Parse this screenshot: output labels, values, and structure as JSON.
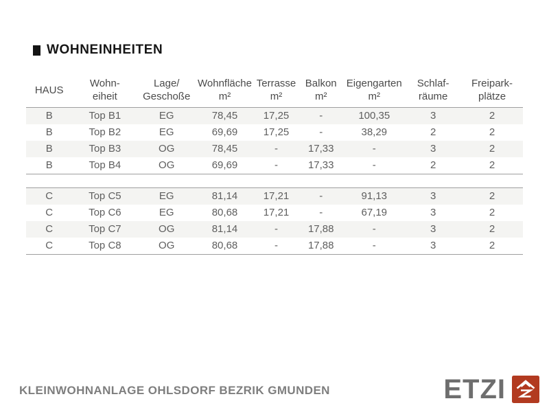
{
  "title": {
    "text": "WOHNEINHEITEN"
  },
  "table": {
    "columns": [
      {
        "id": "haus",
        "label": "HAUS"
      },
      {
        "id": "wohneinheit",
        "label": "Wohn-\neiheit"
      },
      {
        "id": "lage-geschosse",
        "label": "Lage/\nGeschoße"
      },
      {
        "id": "wohnflaeche",
        "label": "Wohnfläche\nm²"
      },
      {
        "id": "terrasse",
        "label": "Terrasse\nm²"
      },
      {
        "id": "balkon",
        "label": "Balkon\nm²"
      },
      {
        "id": "eigengarten",
        "label": "Eigengarten\nm²"
      },
      {
        "id": "schlafraeume",
        "label": "Schlaf-\nräume"
      },
      {
        "id": "freiparkplaetze",
        "label": "Freipark-\nplätze"
      }
    ],
    "sections": [
      {
        "id": "haus-b",
        "rows": [
          [
            "B",
            "Top B1",
            "EG",
            "78,45",
            "17,25",
            "-",
            "100,35",
            "3",
            "2"
          ],
          [
            "B",
            "Top B2",
            "EG",
            "69,69",
            "17,25",
            "-",
            "38,29",
            "2",
            "2"
          ],
          [
            "B",
            "Top B3",
            "OG",
            "78,45",
            "-",
            "17,33",
            "-",
            "3",
            "2"
          ],
          [
            "B",
            "Top B4",
            "OG",
            "69,69",
            "-",
            "17,33",
            "-",
            "2",
            "2"
          ]
        ]
      },
      {
        "id": "haus-c",
        "rows": [
          [
            "C",
            "Top C5",
            "EG",
            "81,14",
            "17,21",
            "-",
            "91,13",
            "3",
            "2"
          ],
          [
            "C",
            "Top C6",
            "EG",
            "80,68",
            "17,21",
            "-",
            "67,19",
            "3",
            "2"
          ],
          [
            "C",
            "Top C7",
            "OG",
            "81,14",
            "-",
            "17,88",
            "-",
            "3",
            "2"
          ],
          [
            "C",
            "Top C8",
            "OG",
            "80,68",
            "-",
            "17,88",
            "-",
            "3",
            "2"
          ]
        ]
      }
    ]
  },
  "footer": {
    "project": "KLEINWOHNANLAGE OHLSDORF BEZRIK GMUNDEN",
    "brand": "ETZI"
  },
  "colors": {
    "accent_red": "#b23a20",
    "row_stripe": "#f4f4f2",
    "table_line": "#9e9e9e",
    "title_text": "#161616",
    "header_text": "#4a4a4a",
    "cell_text": "#5e5e5e",
    "footer_text": "#7e7e7e",
    "brand_gray": "#6e6e6e"
  }
}
